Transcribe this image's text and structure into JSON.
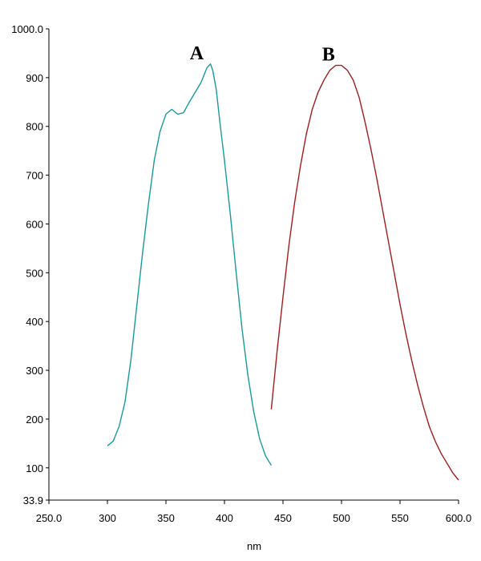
{
  "chart_data": {
    "type": "line",
    "title": "",
    "xlabel": "nm",
    "ylabel": "",
    "xlim": [
      250,
      600
    ],
    "ylim": [
      33.9,
      1000
    ],
    "grid": false,
    "legend": "none",
    "x_ticks": [
      {
        "value": 250,
        "label": "250.0"
      },
      {
        "value": 300,
        "label": "300"
      },
      {
        "value": 350,
        "label": "350"
      },
      {
        "value": 400,
        "label": "400"
      },
      {
        "value": 450,
        "label": "450"
      },
      {
        "value": 500,
        "label": "500"
      },
      {
        "value": 550,
        "label": "550"
      },
      {
        "value": 600,
        "label": "600.0"
      }
    ],
    "y_ticks": [
      {
        "value": 1000,
        "label": "1000.0"
      },
      {
        "value": 900,
        "label": "900"
      },
      {
        "value": 800,
        "label": "800"
      },
      {
        "value": 700,
        "label": "700"
      },
      {
        "value": 600,
        "label": "600"
      },
      {
        "value": 500,
        "label": "500"
      },
      {
        "value": 400,
        "label": "400"
      },
      {
        "value": 300,
        "label": "300"
      },
      {
        "value": 200,
        "label": "200"
      },
      {
        "value": 100,
        "label": "100"
      },
      {
        "value": 33.9,
        "label": "33.9"
      }
    ],
    "series": [
      {
        "label": "A",
        "color": "#1a9a9a",
        "x": [
          300,
          305,
          310,
          315,
          320,
          325,
          330,
          335,
          340,
          345,
          350,
          355,
          360,
          365,
          370,
          375,
          380,
          385,
          388,
          390,
          393,
          396,
          400,
          405,
          410,
          415,
          420,
          425,
          430,
          435,
          440
        ],
        "y": [
          145,
          155,
          185,
          235,
          320,
          430,
          540,
          640,
          730,
          790,
          825,
          835,
          825,
          828,
          850,
          870,
          890,
          920,
          928,
          915,
          875,
          810,
          730,
          620,
          500,
          385,
          290,
          215,
          160,
          125,
          105
        ]
      },
      {
        "label": "B",
        "color": "#a01e1e",
        "x": [
          440,
          445,
          450,
          455,
          460,
          465,
          470,
          475,
          480,
          485,
          490,
          495,
          500,
          505,
          510,
          515,
          520,
          525,
          530,
          535,
          540,
          545,
          550,
          555,
          560,
          565,
          570,
          575,
          580,
          585,
          590,
          595,
          600
        ],
        "y": [
          220,
          340,
          450,
          555,
          645,
          720,
          785,
          835,
          870,
          895,
          915,
          925,
          925,
          915,
          895,
          860,
          810,
          755,
          695,
          630,
          565,
          500,
          435,
          375,
          320,
          270,
          225,
          185,
          155,
          130,
          110,
          90,
          75
        ]
      }
    ]
  }
}
